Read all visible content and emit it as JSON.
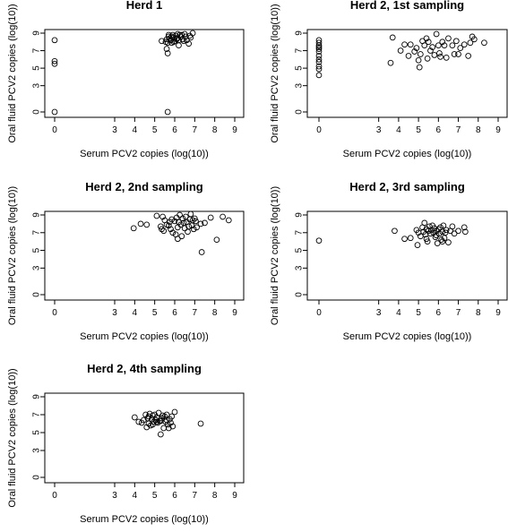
{
  "figure": {
    "xlabel": "Serum PCV2 copies (log(10))",
    "ylabel": "Oral fluid PCV2 copies  (log(10))",
    "xticks": [
      0,
      3,
      4,
      5,
      6,
      7,
      8,
      9
    ],
    "yticks": [
      0,
      3,
      5,
      7,
      9
    ]
  },
  "chart_data": [
    {
      "type": "scatter",
      "title": "Herd 1",
      "xlabel": "Serum PCV2 copies (log(10))",
      "ylabel": "Oral fluid PCV2 copies  (log(10))",
      "xlim": [
        0,
        9
      ],
      "ylim": [
        0,
        9
      ],
      "grid": false,
      "x": [
        0,
        0,
        0,
        0,
        5.35,
        5.55,
        5.6,
        5.6,
        5.65,
        5.7,
        5.75,
        5.8,
        5.85,
        5.9,
        5.95,
        6.0,
        6.05,
        6.1,
        6.15,
        6.2,
        6.25,
        6.3,
        6.4,
        6.5,
        6.55,
        6.6,
        6.7,
        6.8,
        6.9,
        5.65,
        5.7,
        5.95,
        6.2,
        6.75,
        6.1,
        5.85,
        6.35,
        6.45,
        5.65
      ],
      "y": [
        8.2,
        5.8,
        5.5,
        0,
        8.1,
        8.0,
        8.3,
        7.2,
        6.7,
        8.6,
        8.4,
        8.2,
        7.9,
        8.8,
        8.5,
        8.1,
        8.7,
        8.4,
        8.9,
        8.2,
        8.8,
        8.6,
        8.3,
        8.9,
        8.6,
        8.2,
        7.8,
        8.5,
        9.0,
        7.9,
        8.8,
        8.0,
        7.6,
        8.7,
        8.3,
        8.6,
        8.8,
        8.1,
        0
      ]
    },
    {
      "type": "scatter",
      "title": "Herd 2, 1st sampling",
      "xlabel": "Serum PCV2 copies (log(10))",
      "ylabel": "Oral fluid PCV2 copies  (log(10))",
      "xlim": [
        0,
        9
      ],
      "ylim": [
        0,
        9
      ],
      "grid": false,
      "x": [
        0,
        0,
        0,
        0,
        0,
        0,
        0,
        0,
        0,
        0,
        0,
        0,
        3.6,
        3.7,
        4.1,
        4.3,
        4.5,
        4.6,
        4.8,
        4.9,
        5.0,
        5.05,
        5.1,
        5.2,
        5.3,
        5.4,
        5.45,
        5.5,
        5.6,
        5.7,
        5.8,
        5.9,
        6.0,
        6.05,
        6.1,
        6.2,
        6.3,
        6.4,
        6.5,
        6.7,
        6.8,
        6.9,
        7.0,
        7.1,
        7.3,
        7.5,
        7.6,
        7.7,
        7.8,
        8.3
      ],
      "y": [
        8.2,
        7.9,
        7.6,
        7.2,
        6.9,
        6.4,
        6.0,
        5.7,
        5.2,
        4.9,
        4.2,
        7.4,
        5.6,
        8.5,
        7.0,
        7.7,
        6.4,
        7.7,
        6.9,
        7.3,
        5.9,
        5.1,
        6.6,
        8.1,
        7.6,
        8.4,
        6.1,
        8.0,
        7.0,
        7.4,
        6.5,
        8.9,
        7.6,
        6.7,
        6.3,
        8.0,
        7.6,
        6.2,
        8.4,
        7.6,
        6.6,
        8.1,
        6.6,
        7.3,
        7.7,
        6.4,
        7.9,
        8.6,
        8.3,
        7.9
      ]
    },
    {
      "type": "scatter",
      "title": "Herd 2, 2nd sampling",
      "xlabel": "Serum PCV2 copies (log(10))",
      "ylabel": "Oral fluid PCV2 copies  (log(10))",
      "xlim": [
        0,
        9
      ],
      "ylim": [
        0,
        9
      ],
      "grid": false,
      "x": [
        3.95,
        4.3,
        4.6,
        5.1,
        5.3,
        5.35,
        5.4,
        5.5,
        5.6,
        5.7,
        5.75,
        5.8,
        5.85,
        5.9,
        6.0,
        6.05,
        6.1,
        6.15,
        6.2,
        6.25,
        6.3,
        6.35,
        6.4,
        6.45,
        6.5,
        6.55,
        6.6,
        6.7,
        6.75,
        6.8,
        6.85,
        6.9,
        6.95,
        7.0,
        7.05,
        7.1,
        7.3,
        7.5,
        7.8,
        8.1,
        8.4,
        8.7,
        7.35,
        6.15,
        5.45,
        6.65
      ],
      "y": [
        7.5,
        8.0,
        7.9,
        8.9,
        7.7,
        7.4,
        8.8,
        8.4,
        7.9,
        7.8,
        8.2,
        7.4,
        8.5,
        7.0,
        8.3,
        6.8,
        8.7,
        7.6,
        8.2,
        9.0,
        7.9,
        6.6,
        8.6,
        8.1,
        7.5,
        8.8,
        8.2,
        7.7,
        8.5,
        9.1,
        7.8,
        8.4,
        7.4,
        8.6,
        8.3,
        7.6,
        8.0,
        8.1,
        8.7,
        6.2,
        8.8,
        8.4,
        4.8,
        6.3,
        7.2,
        7.1
      ]
    },
    {
      "type": "scatter",
      "title": "Herd 2, 3rd sampling",
      "xlabel": "Serum PCV2 copies (log(10))",
      "ylabel": "Oral fluid PCV2 copies  (log(10))",
      "xlim": [
        0,
        9
      ],
      "ylim": [
        0,
        9
      ],
      "grid": false,
      "x": [
        0,
        3.8,
        4.3,
        4.6,
        4.9,
        4.95,
        5.0,
        5.1,
        5.2,
        5.25,
        5.3,
        5.35,
        5.4,
        5.45,
        5.5,
        5.55,
        5.6,
        5.65,
        5.7,
        5.75,
        5.8,
        5.85,
        5.9,
        5.95,
        6.0,
        6.05,
        6.1,
        6.15,
        6.2,
        6.25,
        6.3,
        6.35,
        6.4,
        6.5,
        6.6,
        6.7,
        6.8,
        7.0,
        7.3,
        7.35,
        5.9,
        6.2,
        5.4
      ],
      "y": [
        6.1,
        7.2,
        6.3,
        6.4,
        7.3,
        5.6,
        7.0,
        6.6,
        7.6,
        7.1,
        8.1,
        6.8,
        7.4,
        6.0,
        7.2,
        7.7,
        6.9,
        7.3,
        7.8,
        7.0,
        7.5,
        6.5,
        7.2,
        5.8,
        7.4,
        6.9,
        7.6,
        6.2,
        7.1,
        7.8,
        6.4,
        7.0,
        7.3,
        5.9,
        7.2,
        7.7,
        6.9,
        7.2,
        7.6,
        7.1,
        6.7,
        6.0,
        6.3
      ]
    },
    {
      "type": "scatter",
      "title": "Herd 2, 4th sampling",
      "xlabel": "Serum PCV2 copies (log(10))",
      "ylabel": "Oral fluid PCV2 copies  (log(10))",
      "xlim": [
        0,
        9
      ],
      "ylim": [
        0,
        9
      ],
      "grid": false,
      "x": [
        4.0,
        4.2,
        4.35,
        4.45,
        4.55,
        4.6,
        4.65,
        4.7,
        4.75,
        4.8,
        4.85,
        4.9,
        4.95,
        5.0,
        5.05,
        5.1,
        5.15,
        5.2,
        5.25,
        5.3,
        5.35,
        5.4,
        5.45,
        5.5,
        5.55,
        5.6,
        5.65,
        5.7,
        5.75,
        5.8,
        5.85,
        5.9,
        6.0,
        7.3,
        5.3,
        4.9,
        5.6,
        5.1,
        4.7
      ],
      "y": [
        6.7,
        6.2,
        6.1,
        6.4,
        7.0,
        5.6,
        6.6,
        6.0,
        7.1,
        5.8,
        6.5,
        6.9,
        6.2,
        7.0,
        6.4,
        6.7,
        6.1,
        7.2,
        6.3,
        4.8,
        6.6,
        6.9,
        5.5,
        6.8,
        6.2,
        7.0,
        5.9,
        5.5,
        6.5,
        6.1,
        6.8,
        5.7,
        7.3,
        6.0,
        6.3,
        5.9,
        6.4,
        6.2,
        6.8
      ]
    }
  ]
}
